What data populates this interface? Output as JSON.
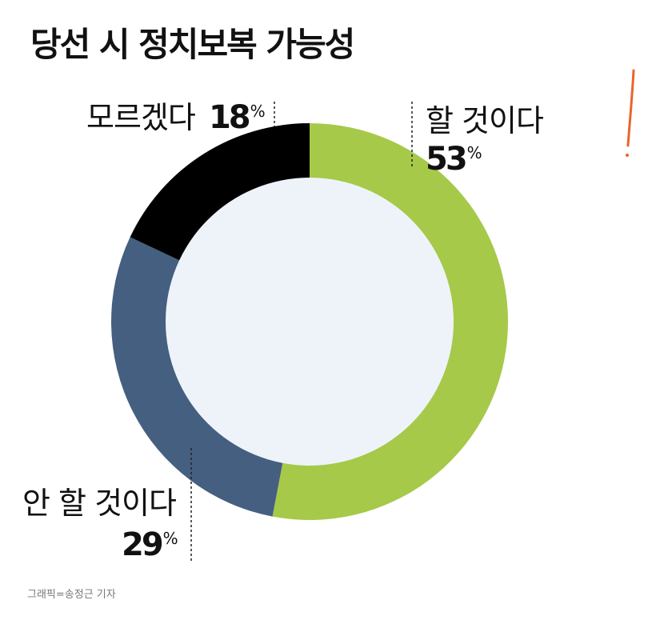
{
  "chart_data": {
    "type": "pie",
    "title": "당선 시 정치보복 가능성",
    "categories": [
      "할 것이다",
      "안 할 것이다",
      "모르겠다"
    ],
    "values": [
      53,
      29,
      18
    ],
    "unit": "%",
    "colors": [
      "#a6c94a",
      "#445f80",
      "#000000"
    ],
    "center_color": "#eef3fa"
  },
  "labels": {
    "will": {
      "text": "할 것이다",
      "value": "53",
      "unit": "%"
    },
    "wont": {
      "text": "안 할 것이다",
      "value": "29",
      "unit": "%"
    },
    "unknown": {
      "text": "모르겠다",
      "value": "18",
      "unit": "%"
    }
  },
  "credit": "그래픽=송정근 기자",
  "annotation_color": "#e8662a"
}
